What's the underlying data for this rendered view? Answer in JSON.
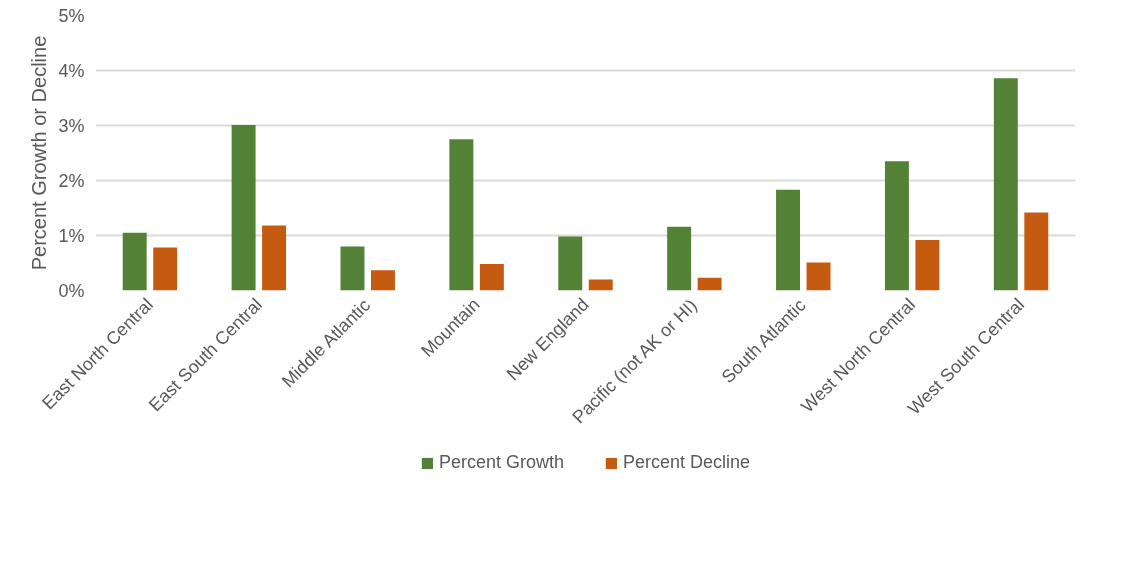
{
  "chart_data": {
    "type": "bar",
    "ylabel": "Percent Growth or Decline",
    "categories": [
      "East North Central",
      "East South Central",
      "Middle Atlantic",
      "Mountain",
      "New England",
      "Pacific (not AK or HI)",
      "South Atlantic",
      "West North Central",
      "West South Central"
    ],
    "series": [
      {
        "name": "Percent Growth",
        "color": "#538135",
        "values": [
          1.05,
          3.01,
          0.8,
          2.75,
          0.98,
          1.16,
          1.83,
          2.35,
          3.86
        ]
      },
      {
        "name": "Percent Decline",
        "color": "#c55a11",
        "values": [
          0.78,
          1.18,
          0.37,
          0.48,
          0.2,
          0.23,
          0.51,
          0.92,
          1.42
        ]
      }
    ],
    "ylim": [
      0,
      5
    ],
    "yticks": [
      {
        "value": 0,
        "label": "0%"
      },
      {
        "value": 1,
        "label": "1%"
      },
      {
        "value": 2,
        "label": "2%"
      },
      {
        "value": 3,
        "label": "3%"
      },
      {
        "value": 4,
        "label": "4%"
      },
      {
        "value": 5,
        "label": "5%"
      }
    ],
    "grid": "y",
    "legend": "bottom"
  }
}
